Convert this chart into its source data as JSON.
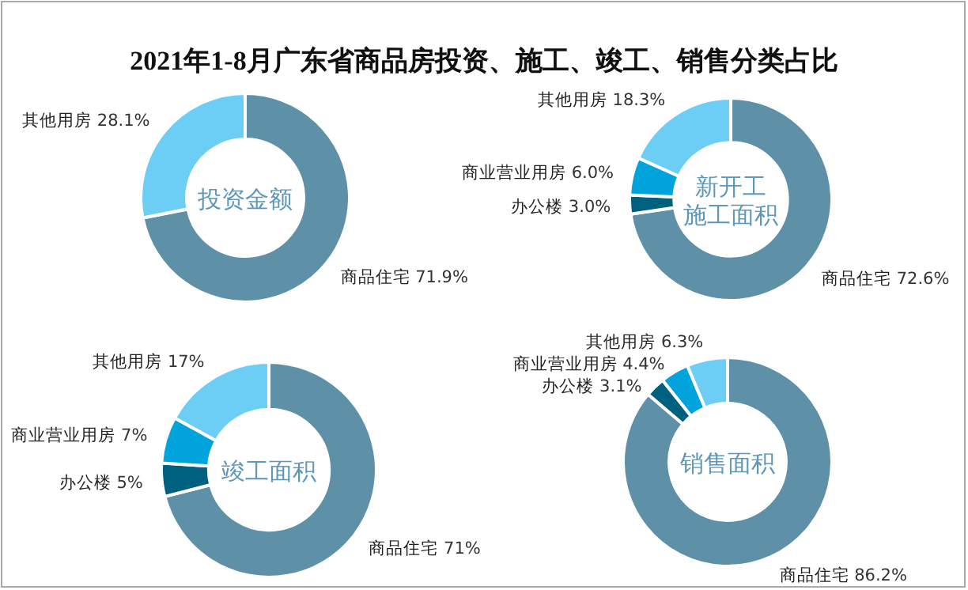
{
  "chart_data": [
    {
      "type": "other",
      "title": "2021年1-8月广东省商品房投资、施工、竣工、销售分类占比"
    },
    {
      "type": "donut",
      "title": "投资金额",
      "categories": [
        "商品住宅",
        "其他用房"
      ],
      "values": [
        71.9,
        28.1
      ],
      "colors": [
        "#5e91a8",
        "#6dcef5"
      ],
      "value_labels": [
        "71.9%",
        "28.1%"
      ]
    },
    {
      "type": "donut",
      "title": "新开工施工面积",
      "categories": [
        "商品住宅",
        "办公楼",
        "商业营业用房",
        "其他用房"
      ],
      "values": [
        72.6,
        3.0,
        6.0,
        18.3
      ],
      "colors": [
        "#5e91a8",
        "#00607f",
        "#00a3db",
        "#6dcef5"
      ],
      "value_labels": [
        "72.6%",
        "3.0%",
        "6.0%",
        "18.3%"
      ]
    },
    {
      "type": "donut",
      "title": "竣工面积",
      "categories": [
        "商品住宅",
        "办公楼",
        "商业营业用房",
        "其他用房"
      ],
      "values": [
        71,
        5,
        7,
        17
      ],
      "colors": [
        "#5e91a8",
        "#00607f",
        "#00a3db",
        "#6dcef5"
      ],
      "value_labels": [
        "71%",
        "5%",
        "7%",
        "17%"
      ]
    },
    {
      "type": "donut",
      "title": "销售面积",
      "categories": [
        "商品住宅",
        "办公楼",
        "商业营业用房",
        "其他用房"
      ],
      "values": [
        86.2,
        3.1,
        4.4,
        6.3
      ],
      "colors": [
        "#5e91a8",
        "#00607f",
        "#00a3db",
        "#6dcef5"
      ],
      "value_labels": [
        "86.2%",
        "3.1%",
        "4.4%",
        "6.3%"
      ]
    }
  ]
}
